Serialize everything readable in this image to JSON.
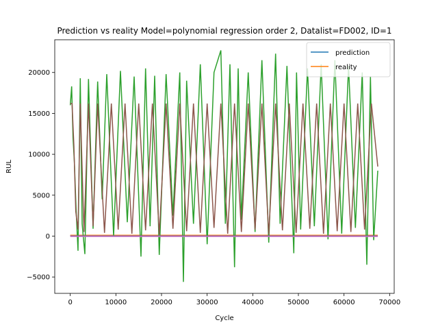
{
  "chart_data": {
    "type": "line",
    "title": "Prediction vs reality Model=polynomial regression order 2, Datalist=FD002, ID=1",
    "xlabel": "Cycle",
    "ylabel": "RUL",
    "xlim": [
      -3400,
      71000
    ],
    "ylim": [
      -7000,
      24000
    ],
    "xticks": [
      0,
      10000,
      20000,
      30000,
      40000,
      50000,
      60000,
      70000
    ],
    "yticks": [
      -5000,
      0,
      5000,
      10000,
      15000,
      20000
    ],
    "grid": false,
    "legend_position": "top-right",
    "series": [
      {
        "name": "prediction",
        "color": "#1f77b4",
        "legend": true,
        "x": [
          0,
          67400
        ],
        "values": [
          60,
          60
        ]
      },
      {
        "name": "reality",
        "color": "#ff7f0e",
        "legend": true,
        "x": [
          0,
          67400
        ],
        "values": [
          100,
          100
        ]
      },
      {
        "name": "",
        "color": "#2ca02c",
        "legend": false,
        "x": [
          0,
          300,
          600,
          900,
          1300,
          1700,
          2200,
          2600,
          3200,
          4000,
          5000,
          6000,
          7000,
          8000,
          9500,
          11000,
          12500,
          14000,
          15500,
          16500,
          17500,
          18500,
          19500,
          21000,
          22500,
          24000,
          24800,
          25500,
          27000,
          28500,
          30000,
          31500,
          33000,
          34000,
          35000,
          36000,
          36800,
          37500,
          39000,
          40500,
          42000,
          43500,
          45000,
          46000,
          47500,
          49000,
          49600,
          50500,
          52000,
          53500,
          55000,
          56500,
          58000,
          59500,
          61000,
          62500,
          64000,
          65000,
          65800,
          66500,
          67400
        ],
        "values": [
          16000,
          18300,
          12000,
          9000,
          3000,
          -1800,
          19300,
          1500,
          -2200,
          19200,
          900,
          18900,
          4500,
          19800,
          0,
          20200,
          1700,
          19500,
          -2500,
          20500,
          1200,
          19600,
          -2300,
          19800,
          2500,
          20000,
          -5600,
          19000,
          1500,
          21000,
          -1000,
          20000,
          22700,
          1500,
          21000,
          -3800,
          20500,
          2000,
          20000,
          500,
          21500,
          -800,
          22300,
          1500,
          20800,
          -2100,
          20000,
          800,
          20500,
          1200,
          21000,
          -400,
          21500,
          300,
          20800,
          1000,
          20000,
          -3500,
          19500,
          -500,
          8000
        ]
      },
      {
        "name": "",
        "color": "#8c564b",
        "legend": false,
        "x": [
          0,
          400,
          800,
          1200,
          1700,
          2200,
          3000,
          4000,
          5000,
          6000,
          7500,
          9000,
          10500,
          12000,
          13500,
          15000,
          16500,
          18000,
          19500,
          21000,
          22500,
          24000,
          25500,
          27000,
          28500,
          30000,
          31500,
          33000,
          34500,
          36000,
          37500,
          39000,
          40500,
          42000,
          43500,
          45000,
          46500,
          48000,
          49500,
          51000,
          52500,
          54000,
          55500,
          57000,
          58500,
          60000,
          61500,
          63000,
          64500,
          66000,
          67400
        ],
        "values": [
          16200,
          16200,
          11000,
          3000,
          800,
          16200,
          500,
          16200,
          1200,
          16200,
          400,
          16200,
          800,
          16200,
          300,
          16200,
          700,
          16200,
          200,
          16200,
          900,
          16200,
          600,
          16200,
          400,
          16200,
          1000,
          16200,
          300,
          16200,
          500,
          16200,
          800,
          16200,
          200,
          16200,
          700,
          16200,
          400,
          16200,
          900,
          16200,
          300,
          16200,
          600,
          16200,
          500,
          16200,
          800,
          16200,
          8500
        ]
      },
      {
        "name": "",
        "color": "#e377c2",
        "legend": false,
        "x": [
          0,
          67400
        ],
        "values": [
          -50,
          -50
        ]
      },
      {
        "name": "",
        "color": "#9467bd",
        "legend": false,
        "x": [
          0,
          67400
        ],
        "values": [
          20,
          20
        ]
      }
    ]
  }
}
